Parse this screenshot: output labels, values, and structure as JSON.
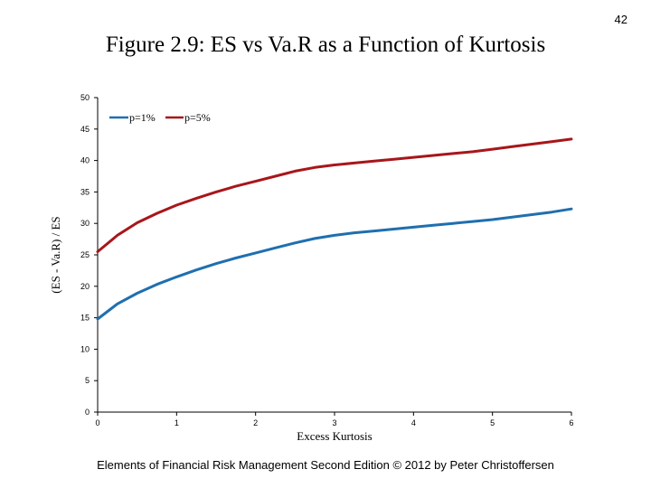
{
  "page_number": "42",
  "slide_title": "Figure 2.9: ES vs Va.R as a Function of Kurtosis",
  "footer": "Elements of Financial Risk Management Second Edition © 2012  by Peter Christoffersen",
  "chart_data": {
    "type": "line",
    "title": "",
    "xlabel": "Excess Kurtosis",
    "ylabel": "(ES - Va.R) / ES",
    "xlim": [
      0,
      6
    ],
    "ylim": [
      0,
      50
    ],
    "x_ticks": [
      "0",
      "1",
      "2",
      "3",
      "4",
      "5",
      "6"
    ],
    "y_ticks": [
      "0",
      "5",
      "10",
      "15",
      "20",
      "25",
      "30",
      "35",
      "40",
      "45",
      "50"
    ],
    "grid": false,
    "legend_position": "top-left",
    "x": [
      0,
      0.25,
      0.5,
      0.75,
      1,
      1.25,
      1.5,
      1.75,
      2,
      2.25,
      2.5,
      2.75,
      3,
      3.25,
      3.5,
      3.75,
      4,
      4.25,
      4.5,
      4.75,
      5,
      5.25,
      5.5,
      5.75,
      6
    ],
    "series": [
      {
        "name": "p=1%",
        "color": "#1f6faf",
        "values": [
          14.8,
          17.2,
          18.9,
          20.3,
          21.5,
          22.6,
          23.6,
          24.5,
          25.3,
          26.1,
          26.9,
          27.6,
          28.1,
          28.5,
          28.8,
          29.1,
          29.4,
          29.7,
          30.0,
          30.3,
          30.6,
          31.0,
          31.4,
          31.8,
          32.3
        ]
      },
      {
        "name": "p=5%",
        "color": "#a8161a",
        "values": [
          25.5,
          28.1,
          30.1,
          31.6,
          32.9,
          34.0,
          35.0,
          35.9,
          36.7,
          37.5,
          38.3,
          38.9,
          39.3,
          39.6,
          39.9,
          40.2,
          40.5,
          40.8,
          41.1,
          41.4,
          41.8,
          42.2,
          42.6,
          43.0,
          43.4
        ]
      }
    ]
  }
}
